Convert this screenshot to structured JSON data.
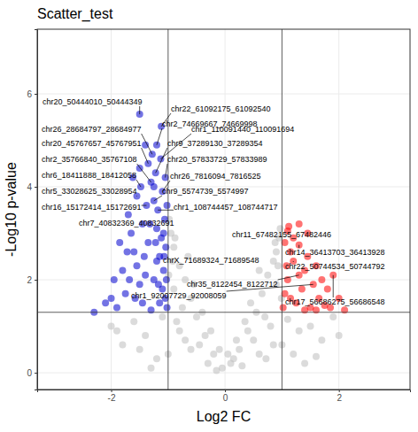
{
  "chart_data": {
    "type": "scatter",
    "title": "Scatter_test",
    "x_label": "Log2 FC",
    "y_label": "-Log10 p-value",
    "xlim": [
      -3.3,
      3.25
    ],
    "ylim": [
      -0.36,
      7.39
    ],
    "xticks": [
      -2,
      0,
      2
    ],
    "yticks": [
      0,
      2,
      4,
      6
    ],
    "grid": true,
    "vlines": [
      -1,
      1
    ],
    "hlines": [
      1.301
    ],
    "series": [
      {
        "color": "#bebebe",
        "x": [
          -0.05,
          0.1,
          -0.2,
          0.25,
          -0.35,
          0.4,
          -0.5,
          0.55,
          -0.6,
          0.65,
          -0.7,
          0.75,
          -0.8,
          0.85,
          -0.9,
          0.9,
          -0.95,
          0.95,
          -0.98,
          0.97,
          -0.3,
          0.3,
          -0.6,
          0.6,
          -0.8,
          0.8,
          -0.45,
          0.5,
          -0.15,
          0.15,
          -0.75,
          0.7,
          -0.9,
          0.9,
          -0.85,
          0.85,
          -1.2,
          1.2,
          -1.4,
          1.3,
          -1.6,
          1.5,
          -1.8,
          1.7,
          -1.1,
          1.1,
          -1.9,
          1.9,
          -1.3,
          1.4,
          -0.65,
          0.6,
          -0.55,
          0.45,
          -0.4,
          0.35,
          -0.25,
          0.2,
          -0.1,
          0.05,
          -0.92,
          0.93,
          -0.88,
          0.88,
          -0.99,
          0.99,
          -0.7,
          0.72,
          -1.5,
          1.6,
          -2.0,
          2.0,
          -1.0,
          1.0
        ],
        "values": [
          0.1,
          0.2,
          0.4,
          0.5,
          0.8,
          0.9,
          1.2,
          1.3,
          1.6,
          1.7,
          2.0,
          2.1,
          2.3,
          2.4,
          2.7,
          2.6,
          3.0,
          2.9,
          3.3,
          3.1,
          0.2,
          0.15,
          0.5,
          0.4,
          0.9,
          1.0,
          0.6,
          0.7,
          0.05,
          0.3,
          1.4,
          1.2,
          1.8,
          1.9,
          1.1,
          0.6,
          0.3,
          0.4,
          0.8,
          0.9,
          1.1,
          1.0,
          0.6,
          0.7,
          1.2,
          1.15,
          0.9,
          1.2,
          0.1,
          0.2,
          2.5,
          2.2,
          1.9,
          1.5,
          1.3,
          1.1,
          0.9,
          0.7,
          0.5,
          0.4,
          2.4,
          2.3,
          2.9,
          2.8,
          2.1,
          1.6,
          0.7,
          0.3,
          0.5,
          0.35,
          1.0,
          0.8,
          0.4,
          0.6
        ]
      },
      {
        "color": "#0000cd",
        "x": [
          -1.02,
          -1.05,
          -1.1,
          -1.03,
          -1.08,
          -1.15,
          -1.04,
          -1.12,
          -1.2,
          -1.06,
          -1.18,
          -1.25,
          -1.1,
          -1.3,
          -1.22,
          -1.35,
          -1.28,
          -1.4,
          -1.5,
          -1.45,
          -1.5,
          -1.55,
          -1.6,
          -1.65,
          -1.7,
          -1.4,
          -1.35,
          -1.3,
          -1.25,
          -1.2,
          -1.45,
          -1.55,
          -1.62,
          -1.75,
          -1.8,
          -1.85,
          -1.9,
          -2.0,
          -2.1,
          -2.3,
          -1.95,
          -1.15,
          -1.08,
          -1.02,
          -1.13,
          -1.2,
          -1.05,
          -1.12,
          -1.25,
          -1.38,
          -1.48,
          -1.58,
          -1.68,
          -1.42,
          -1.32,
          -1.22,
          -1.17,
          -1.07,
          -1.72,
          -1.5
        ],
        "values": [
          1.4,
          1.6,
          1.8,
          2.0,
          2.2,
          2.5,
          2.7,
          2.9,
          3.1,
          3.3,
          3.5,
          3.7,
          3.9,
          4.1,
          4.3,
          4.5,
          4.7,
          4.9,
          5.56,
          1.5,
          1.9,
          2.3,
          2.6,
          3.0,
          3.4,
          2.1,
          2.8,
          1.35,
          2.0,
          2.4,
          3.2,
          3.8,
          4.2,
          1.7,
          2.2,
          2.8,
          1.4,
          1.6,
          1.5,
          1.3,
          2.0,
          1.5,
          3.0,
          3.6,
          4.6,
          4.9,
          4.2,
          5.3,
          4.0,
          3.6,
          4.0,
          1.6,
          2.0,
          2.5,
          3.2,
          2.8,
          1.9,
          2.5,
          2.6,
          4.4
        ]
      },
      {
        "color": "#ff0000",
        "x": [
          1.02,
          1.05,
          1.1,
          1.08,
          1.15,
          1.2,
          1.1,
          1.3,
          1.25,
          1.35,
          1.4,
          1.45,
          1.5,
          1.55,
          1.6,
          1.65,
          1.7,
          1.75,
          1.8,
          1.9,
          2.0,
          2.1,
          1.3,
          1.2,
          1.3,
          1.15,
          1.4,
          1.05,
          1.12,
          1.6,
          1.85,
          1.45
        ],
        "values": [
          1.4,
          1.7,
          2.0,
          2.3,
          2.6,
          2.9,
          3.05,
          3.2,
          1.5,
          1.8,
          2.2,
          2.5,
          1.4,
          1.9,
          2.3,
          1.6,
          2.0,
          1.45,
          1.8,
          2.1,
          1.6,
          1.35,
          2.75,
          2.4,
          2.1,
          1.6,
          1.35,
          2.8,
          3.15,
          1.35,
          1.4,
          3.0
        ]
      }
    ],
    "annotations": [
      {
        "text": "chr20_50444010_50444349",
        "x": -1.5,
        "y": 5.56
      },
      {
        "text": "chr22_61092175_61092540",
        "x": -1.12,
        "y": 5.3
      },
      {
        "text": "chr2_74669667_74669998",
        "x": -1.2,
        "y": 4.9
      },
      {
        "text": "chr26_28684797_28684977",
        "x": -1.28,
        "y": 4.7
      },
      {
        "text": "chr1_110091440_110091694",
        "x": -1.13,
        "y": 4.6
      },
      {
        "text": "chr20_45767657_45767951",
        "x": -1.35,
        "y": 4.5
      },
      {
        "text": "chr9_37289130_37289354",
        "x": -1.22,
        "y": 4.3
      },
      {
        "text": "chr2_35766840_35767108",
        "x": -1.3,
        "y": 4.1
      },
      {
        "text": "chr20_57833729_57833989",
        "x": -1.05,
        "y": 4.2
      },
      {
        "text": "chr6_18411888_18412058",
        "x": -1.48,
        "y": 4.0
      },
      {
        "text": "chr26_7816094_7816525",
        "x": -1.1,
        "y": 3.9
      },
      {
        "text": "chr5_33028625_33028954",
        "x": -1.55,
        "y": 3.8
      },
      {
        "text": "chr9_5574739_5574997",
        "x": -1.25,
        "y": 3.7
      },
      {
        "text": "chr16_15172414_15172691",
        "x": -1.38,
        "y": 3.6
      },
      {
        "text": "chr1_108744457_108744717",
        "x": -1.18,
        "y": 3.5
      },
      {
        "text": "chr7_40832369_40832691",
        "x": -1.06,
        "y": 3.3
      },
      {
        "text": "chr11_67482155_67482446",
        "x": 1.1,
        "y": 3.05
      },
      {
        "text": "chr14_36413703_36413928",
        "x": 1.3,
        "y": 2.75
      },
      {
        "text": "chrX_71689324_71689548",
        "x": -1.07,
        "y": 2.5
      },
      {
        "text": "chr22_50744534_50744792",
        "x": 1.2,
        "y": 2.4
      },
      {
        "text": "chr35_8122454_8122712",
        "x": 1.3,
        "y": 2.1
      },
      {
        "text": "chr1_92007729_92008059",
        "x": 1.55,
        "y": 1.9
      },
      {
        "text": "chr17_56686275_56686548",
        "x": 1.9,
        "y": 2.1
      }
    ]
  }
}
